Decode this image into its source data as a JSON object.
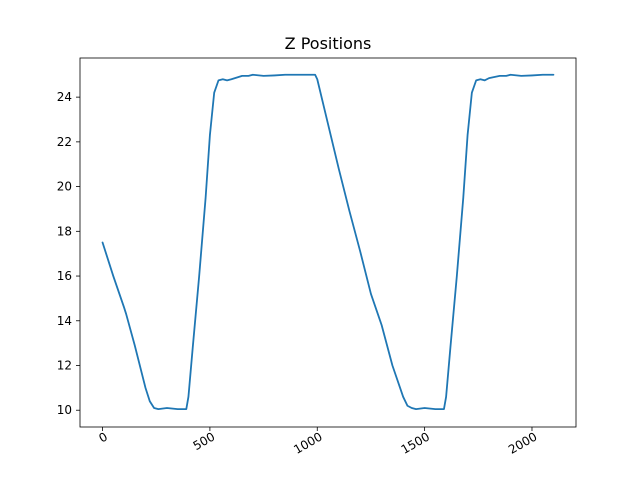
{
  "chart_data": {
    "type": "line",
    "title": "Z Positions",
    "xlabel": "",
    "ylabel": "",
    "xlim": [
      -105,
      2205
    ],
    "ylim": [
      9.25,
      25.75
    ],
    "xticks": [
      0,
      500,
      1000,
      1500,
      2000
    ],
    "xtick_labels": [
      "0",
      "500",
      "1000",
      "1500",
      "2000"
    ],
    "yticks": [
      10,
      12,
      14,
      16,
      18,
      20,
      22,
      24
    ],
    "ytick_labels": [
      "10",
      "12",
      "14",
      "16",
      "18",
      "20",
      "22",
      "24"
    ],
    "grid": false,
    "series": [
      {
        "color": "#1f77b4",
        "x": [
          0,
          50,
          100,
          110,
          150,
          200,
          220,
          240,
          260,
          300,
          350,
          390,
          400,
          420,
          450,
          480,
          500,
          520,
          540,
          560,
          580,
          600,
          650,
          680,
          700,
          750,
          800,
          850,
          900,
          950,
          990,
          1000,
          1050,
          1100,
          1150,
          1200,
          1250,
          1300,
          1350,
          1400,
          1420,
          1440,
          1460,
          1500,
          1550,
          1590,
          1600,
          1620,
          1650,
          1680,
          1700,
          1720,
          1740,
          1760,
          1780,
          1800,
          1850,
          1880,
          1900,
          1950,
          2000,
          2050,
          2100
        ],
        "y": [
          17.5,
          16.0,
          14.6,
          14.3,
          12.9,
          11.0,
          10.4,
          10.1,
          10.05,
          10.1,
          10.05,
          10.05,
          10.6,
          12.8,
          16.0,
          19.5,
          22.3,
          24.2,
          24.75,
          24.8,
          24.75,
          24.8,
          24.95,
          24.95,
          25.0,
          24.95,
          24.97,
          25.0,
          25.0,
          25.0,
          25.0,
          24.8,
          22.8,
          20.8,
          18.9,
          17.1,
          15.2,
          13.8,
          12.0,
          10.6,
          10.2,
          10.1,
          10.05,
          10.1,
          10.05,
          10.05,
          10.6,
          12.8,
          16.0,
          19.5,
          22.3,
          24.2,
          24.75,
          24.8,
          24.75,
          24.85,
          24.95,
          24.95,
          25.0,
          24.95,
          24.97,
          25.0,
          25.0
        ]
      }
    ]
  }
}
